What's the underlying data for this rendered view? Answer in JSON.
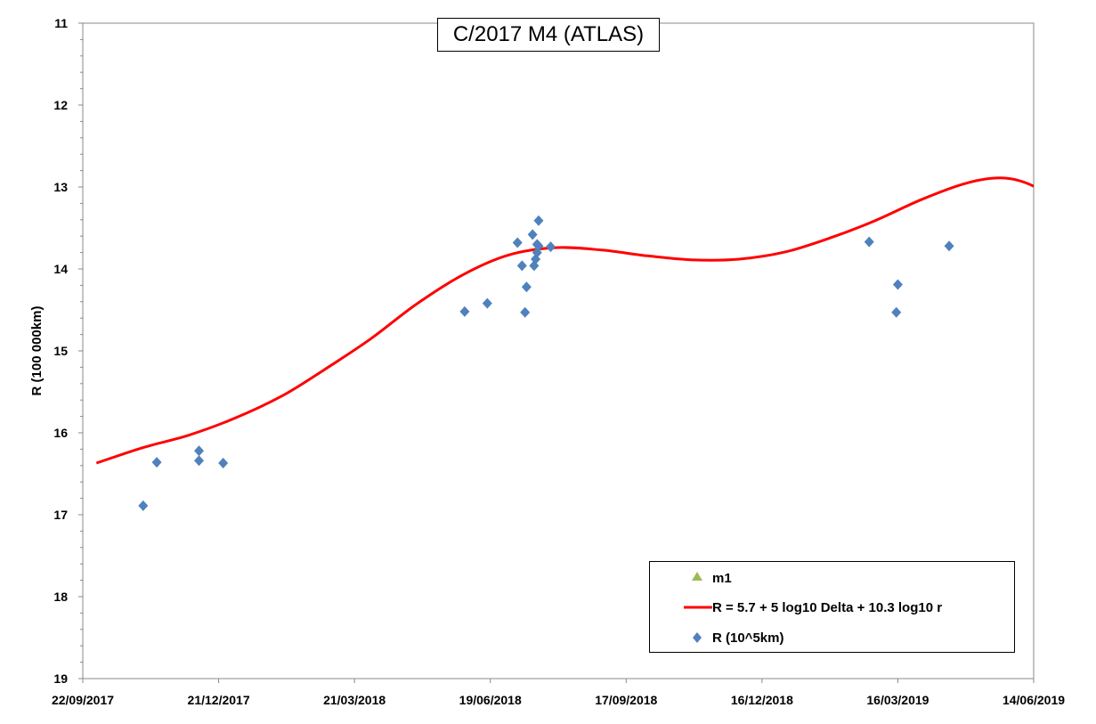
{
  "chart_data": {
    "type": "scatter",
    "title": "C/2017 M4 (ATLAS)",
    "xlabel": "",
    "ylabel": "R (100 000km)",
    "x_tick_labels": [
      "22/09/2017",
      "21/12/2017",
      "21/03/2018",
      "19/06/2018",
      "17/09/2018",
      "16/12/2018",
      "16/03/2019",
      "14/06/2019"
    ],
    "xlim": [
      "22/09/2017",
      "14/06/2019"
    ],
    "ylim": [
      11,
      19
    ],
    "y_reversed": true,
    "y_ticks": [
      11,
      12,
      13,
      14,
      15,
      16,
      17,
      18,
      19
    ],
    "grid": false,
    "legend_position": "bottom-right",
    "series": [
      {
        "name": "m1",
        "kind": "marker",
        "marker": "triangle",
        "color": "#9bbb59",
        "points": []
      },
      {
        "name": "R = 5.7 + 5 log10 Delta + 10.3 log10 r",
        "kind": "line",
        "color": "#ff0000",
        "points": [
          {
            "x": "2017-10-01",
            "y": 16.37
          },
          {
            "x": "2017-11-01",
            "y": 16.18
          },
          {
            "x": "2017-12-01",
            "y": 16.03
          },
          {
            "x": "2018-01-01",
            "y": 15.82
          },
          {
            "x": "2018-02-01",
            "y": 15.55
          },
          {
            "x": "2018-03-01",
            "y": 15.23
          },
          {
            "x": "2018-04-01",
            "y": 14.85
          },
          {
            "x": "2018-05-01",
            "y": 14.43
          },
          {
            "x": "2018-06-01",
            "y": 14.07
          },
          {
            "x": "2018-07-01",
            "y": 13.83
          },
          {
            "x": "2018-08-01",
            "y": 13.74
          },
          {
            "x": "2018-09-01",
            "y": 13.77
          },
          {
            "x": "2018-10-01",
            "y": 13.84
          },
          {
            "x": "2018-11-01",
            "y": 13.89
          },
          {
            "x": "2018-12-01",
            "y": 13.88
          },
          {
            "x": "2019-01-01",
            "y": 13.79
          },
          {
            "x": "2019-02-01",
            "y": 13.61
          },
          {
            "x": "2019-03-01",
            "y": 13.41
          },
          {
            "x": "2019-04-01",
            "y": 13.15
          },
          {
            "x": "2019-05-01",
            "y": 12.95
          },
          {
            "x": "2019-05-25",
            "y": 12.89
          },
          {
            "x": "2019-06-14",
            "y": 12.99
          },
          {
            "x": "2019-07-01",
            "y": 13.22
          }
        ]
      },
      {
        "name": "R (10^5km)",
        "kind": "marker",
        "marker": "diamond",
        "color": "#4f81bd",
        "points": [
          {
            "x": "2017-11-01",
            "y": 16.89
          },
          {
            "x": "2017-11-10",
            "y": 16.36
          },
          {
            "x": "2017-12-08",
            "y": 16.22
          },
          {
            "x": "2017-12-08",
            "y": 16.34
          },
          {
            "x": "2017-12-24",
            "y": 16.37
          },
          {
            "x": "2018-06-02",
            "y": 14.52
          },
          {
            "x": "2018-06-17",
            "y": 14.42
          },
          {
            "x": "2018-07-07",
            "y": 13.68
          },
          {
            "x": "2018-07-10",
            "y": 13.96
          },
          {
            "x": "2018-07-12",
            "y": 14.53
          },
          {
            "x": "2018-07-13",
            "y": 14.22
          },
          {
            "x": "2018-07-17",
            "y": 13.58
          },
          {
            "x": "2018-07-18",
            "y": 13.96
          },
          {
            "x": "2018-07-19",
            "y": 13.88
          },
          {
            "x": "2018-07-20",
            "y": 13.8
          },
          {
            "x": "2018-07-20",
            "y": 13.7
          },
          {
            "x": "2018-07-21",
            "y": 13.41
          },
          {
            "x": "2018-07-21",
            "y": 13.72
          },
          {
            "x": "2018-07-29",
            "y": 13.73
          },
          {
            "x": "2019-02-25",
            "y": 13.67
          },
          {
            "x": "2019-03-15",
            "y": 14.53
          },
          {
            "x": "2019-03-16",
            "y": 14.19
          },
          {
            "x": "2019-04-19",
            "y": 13.72
          }
        ]
      }
    ]
  }
}
